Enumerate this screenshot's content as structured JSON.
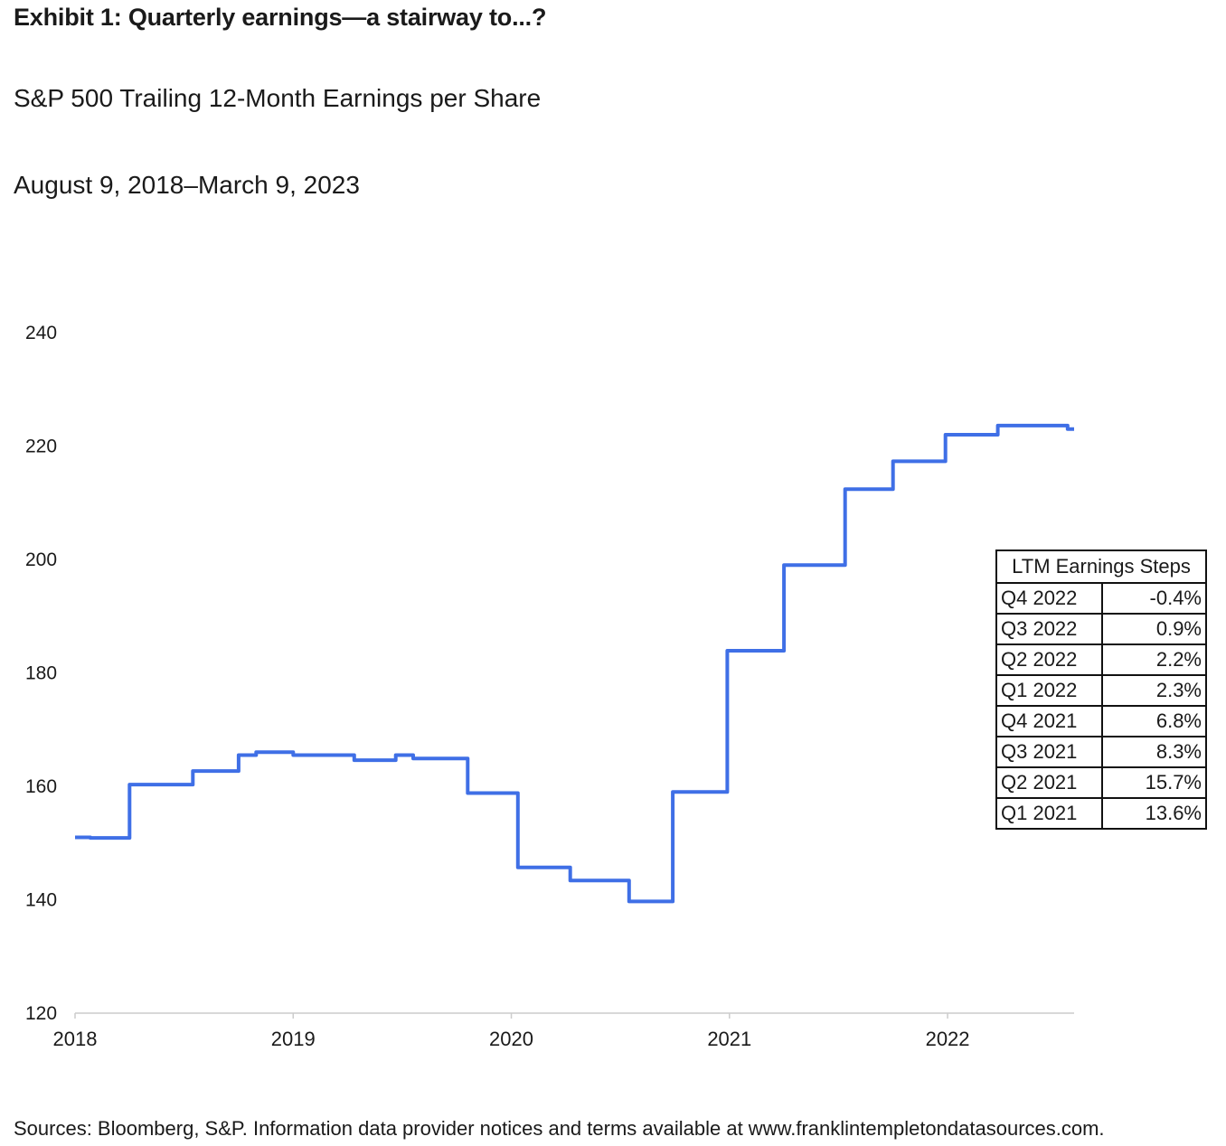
{
  "header": {
    "title": "Exhibit 1: Quarterly earnings—a stairway to...?",
    "subtitle": "S&P 500 Trailing 12-Month Earnings per Share",
    "date_range": "August 9, 2018–March 9, 2023"
  },
  "footer": {
    "source": "Sources: Bloomberg, S&P. Information data provider notices and terms available at www.franklintempletondatasources.com."
  },
  "colors": {
    "line": "#3f6fe6",
    "text": "#1a1a1a",
    "axis": "#cccccc"
  },
  "chart_data": {
    "type": "line",
    "title": "Exhibit 1: Quarterly earnings—a stairway to...?",
    "subtitle": "S&P 500 Trailing 12-Month Earnings per Share",
    "xlabel": "",
    "ylabel": "",
    "xlim": [
      2018.0,
      2022.58
    ],
    "ylim": [
      120,
      240
    ],
    "yticks": [
      120,
      140,
      160,
      180,
      200,
      220,
      240
    ],
    "xticks": [
      2018,
      2019,
      2020,
      2021,
      2022
    ],
    "grid": false,
    "legend": "none",
    "series": [
      {
        "step": true,
        "x": [
          2018.0,
          2018.07,
          2018.07,
          2018.25,
          2018.25,
          2018.54,
          2018.54,
          2018.75,
          2018.75,
          2018.83,
          2018.83,
          2019.0,
          2019.0,
          2019.28,
          2019.28,
          2019.47,
          2019.47,
          2019.55,
          2019.55,
          2019.8,
          2019.8,
          2020.03,
          2020.03,
          2020.27,
          2020.27,
          2020.54,
          2020.54,
          2020.74,
          2020.74,
          2020.99,
          2020.99,
          2021.25,
          2021.25,
          2021.53,
          2021.53,
          2021.75,
          2021.75,
          2021.99,
          2021.99,
          2022.23,
          2022.23,
          2022.55,
          2022.55,
          2022.58
        ],
        "y": [
          151.0,
          151.0,
          150.9,
          150.9,
          160.3,
          160.3,
          162.7,
          162.7,
          165.5,
          165.5,
          166.0,
          166.0,
          165.5,
          165.5,
          164.6,
          164.6,
          165.5,
          165.5,
          164.9,
          164.9,
          158.8,
          158.8,
          145.7,
          145.7,
          143.4,
          143.4,
          139.7,
          139.7,
          159.0,
          159.0,
          183.9,
          183.9,
          199.0,
          199.0,
          212.4,
          212.4,
          217.3,
          217.3,
          222.0,
          222.0,
          223.6,
          223.6,
          223.0,
          223.0
        ]
      }
    ]
  },
  "table": {
    "header": "LTM Earnings Steps",
    "rows": [
      {
        "quarter": "Q4 2022",
        "value": "-0.4%"
      },
      {
        "quarter": "Q3 2022",
        "value": "0.9%"
      },
      {
        "quarter": "Q2 2022",
        "value": "2.2%"
      },
      {
        "quarter": "Q1 2022",
        "value": "2.3%"
      },
      {
        "quarter": "Q4 2021",
        "value": "6.8%"
      },
      {
        "quarter": "Q3 2021",
        "value": "8.3%"
      },
      {
        "quarter": "Q2 2021",
        "value": "15.7%"
      },
      {
        "quarter": "Q1 2021",
        "value": "13.6%"
      }
    ]
  }
}
